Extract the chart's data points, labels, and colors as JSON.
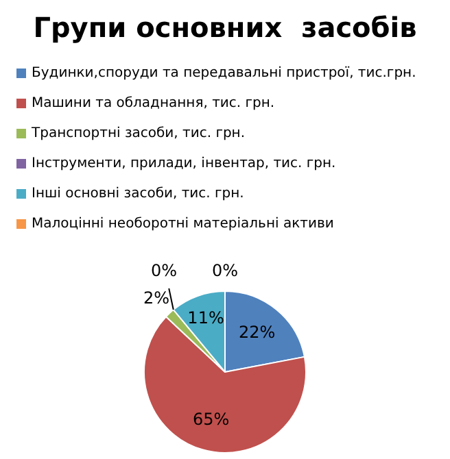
{
  "chart_data": {
    "type": "pie",
    "title": "Групи основних  засобів",
    "categories": [
      "Будинки,споруди та передавальні пристрої, тис.грн.",
      "Машини та обладнання, тис. грн.",
      "Транспортні засоби, тис. грн.",
      "Інструменти, прилади, інвентар, тис. грн.",
      "Інші основні засоби, тис. грн.",
      "Малоцінні необоротні матеріальні активи"
    ],
    "values": [
      22,
      65,
      2,
      0,
      11,
      0
    ],
    "colors": [
      "#4f81bd",
      "#c0504d",
      "#9bbb59",
      "#8064a2",
      "#4bacc6",
      "#f79646"
    ],
    "value_labels": [
      "22%",
      "65%",
      "2%",
      "0%",
      "11%",
      "0%"
    ],
    "legend": "top"
  }
}
